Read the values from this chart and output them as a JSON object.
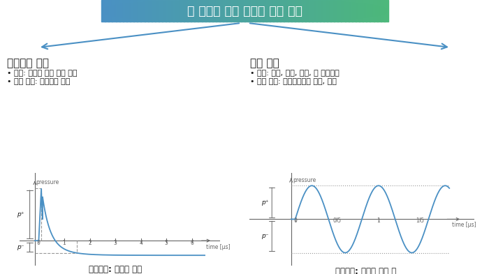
{
  "title": "뇌 부위별 최적 형태의 자극 제공",
  "title_bg_color_left": "#4A90C4",
  "title_bg_color_right": "#4DB87A",
  "arrow_color": "#4A90C4",
  "left_section_title": "전전두엽 이상",
  "left_bullet1": "역할: 판단과 계획 기능 담당",
  "left_bullet2": "관련 장애: 충동조절 장애",
  "right_section_title": "해마 이상",
  "right_bullet1": "역할: 학습, 기억, 감정, 및 운동기등",
  "right_bullet2": "관련 장애: 알츠하이머성 치매, 간질",
  "left_caption": "제어인자: 충격파 강도",
  "right_caption": "제어인자: 충격파 펄스 폭",
  "wave_color": "#4A90C4",
  "axis_color": "#666666",
  "dashed_color": "#999999",
  "dotted_color": "#999999",
  "bg_color": "#ffffff",
  "text_color": "#1a1a1a"
}
